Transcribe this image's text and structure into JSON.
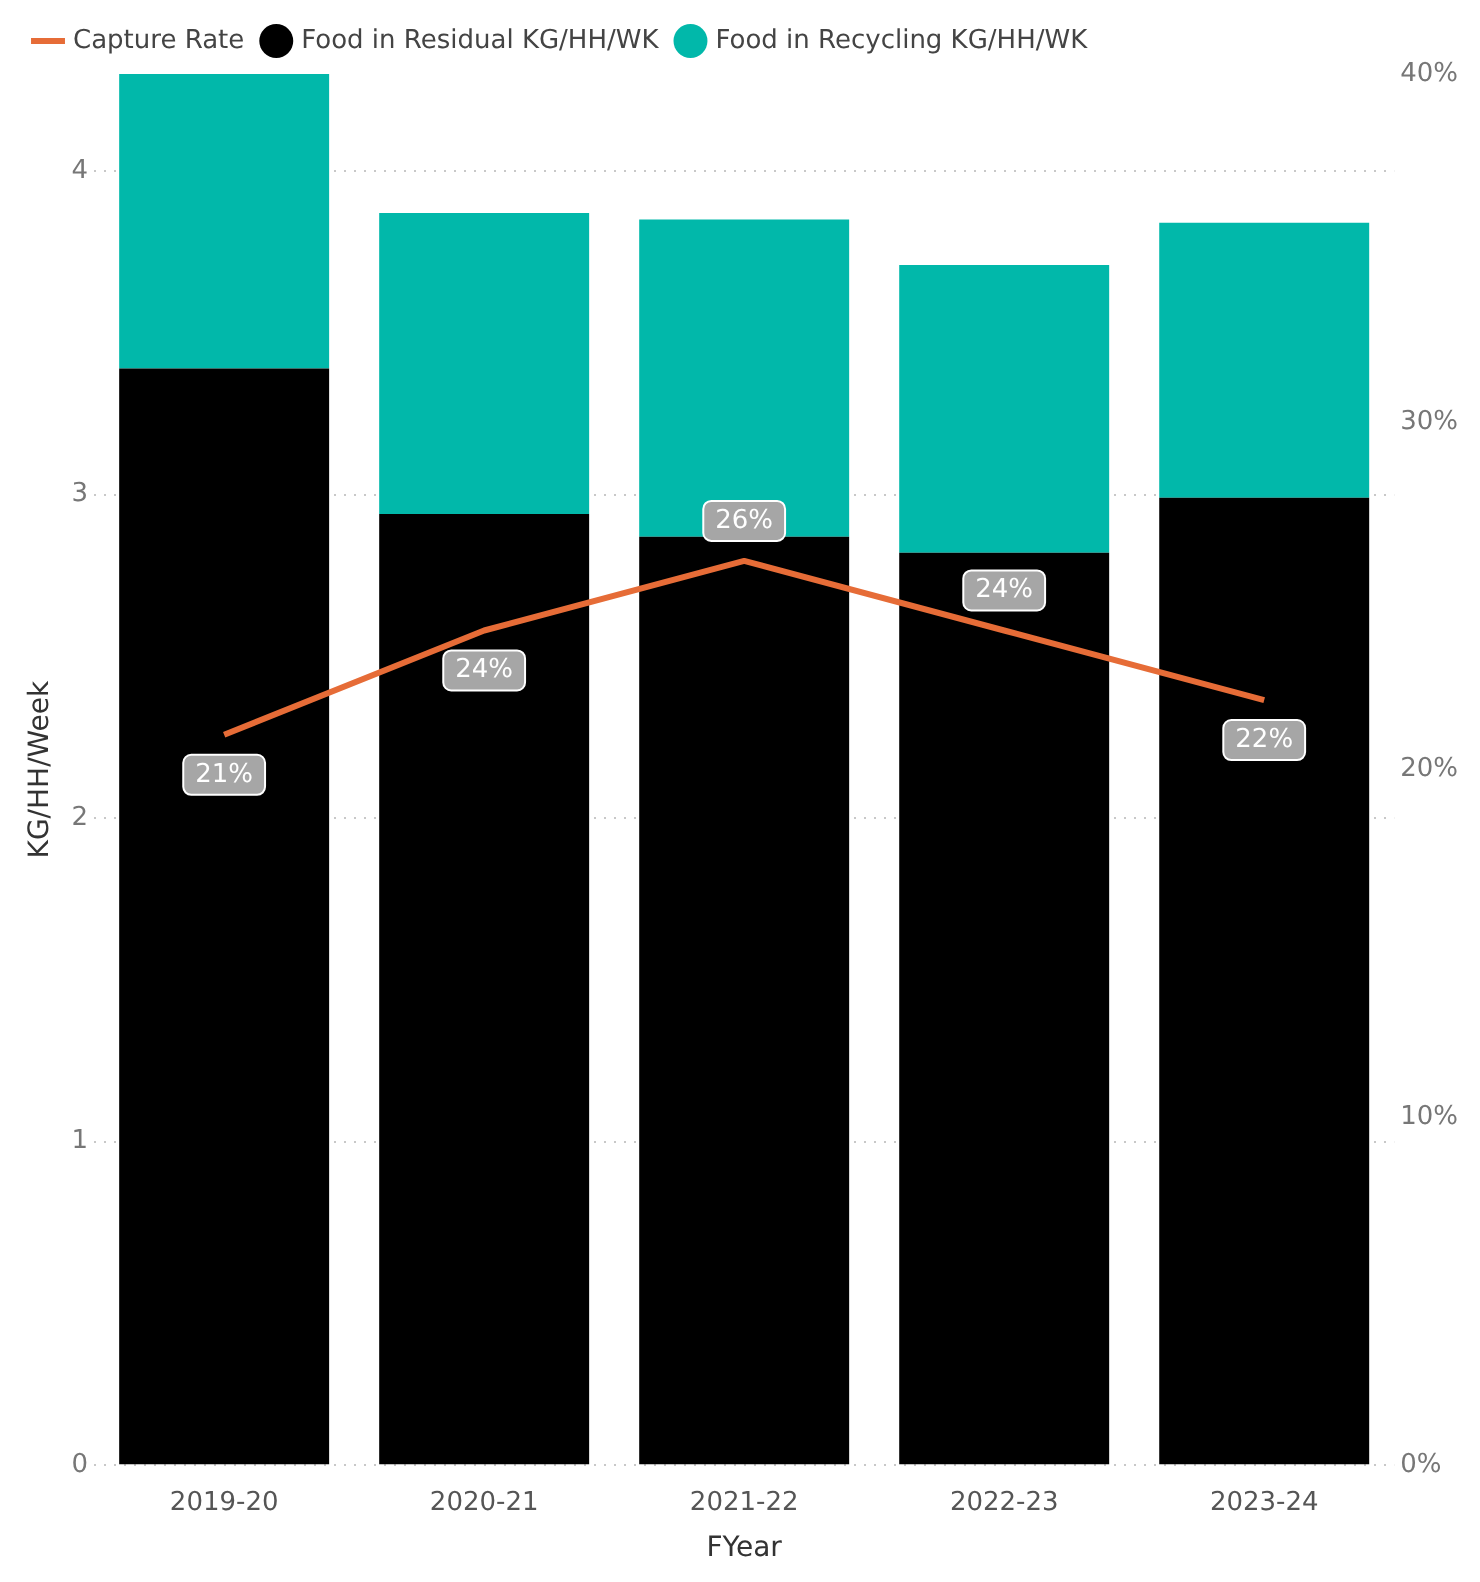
{
  "chart_data": {
    "type": "bar",
    "stacked": true,
    "xlabel": "FYear",
    "ylabel": "KG/HH/Week",
    "categories": [
      "2019-20",
      "2020-21",
      "2021-22",
      "2022-23",
      "2023-24"
    ],
    "series": [
      {
        "name": "Food in Residual KG/HH/WK",
        "color": "#000000",
        "values": [
          3.39,
          2.94,
          2.87,
          2.82,
          2.99
        ]
      },
      {
        "name": "Food in Recycling KG/HH/WK",
        "color": "#01b8aa",
        "values": [
          0.91,
          0.93,
          0.98,
          0.89,
          0.85
        ]
      },
      {
        "name": "Capture Rate",
        "type": "line",
        "axis": "y2",
        "color": "#e66c37",
        "marker": "none",
        "values": [
          21,
          24,
          26,
          24,
          22
        ],
        "value_labels": [
          "21%",
          "24%",
          "26%",
          "24%",
          "22%"
        ]
      }
    ],
    "ylim": [
      0,
      4.3
    ],
    "yticks": [
      0,
      1,
      2,
      3,
      4
    ],
    "y2lim": [
      0,
      40
    ],
    "y2ticks": [
      {
        "value": 0,
        "label": "0%"
      },
      {
        "value": 10,
        "label": "10%"
      },
      {
        "value": 20,
        "label": "20%"
      },
      {
        "value": 30,
        "label": "30%"
      },
      {
        "value": 40,
        "label": "40%"
      }
    ],
    "grid": "y",
    "legend": "top"
  }
}
